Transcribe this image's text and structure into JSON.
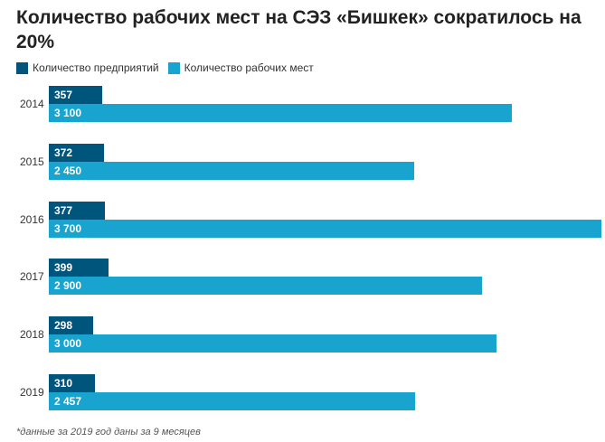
{
  "title": "Количество рабочих мест на СЭЗ «Бишкек» сократилось на 20%",
  "note": "*данные за 2019 год даны за 9 месяцев",
  "colors": {
    "enterprises": "#00557d",
    "jobs": "#19a3cf"
  },
  "chart_data": {
    "type": "bar",
    "orientation": "horizontal",
    "title": "Количество рабочих мест на СЭЗ «Бишкек» сократилось на 20%",
    "categories": [
      "2014",
      "2015",
      "2016",
      "2017",
      "2018",
      "2019"
    ],
    "series": [
      {
        "name": "Количество предприятий",
        "values": [
          357,
          372,
          377,
          399,
          298,
          310
        ],
        "labels": [
          "357",
          "372",
          "377",
          "399",
          "298",
          "310"
        ]
      },
      {
        "name": "Количество рабочих мест",
        "values": [
          3100,
          2450,
          3700,
          2900,
          3000,
          2457
        ],
        "labels": [
          "3 100",
          "2 450",
          "3 700",
          "2 900",
          "3 000",
          "2 457"
        ]
      }
    ],
    "legend": "top-left",
    "grid": false
  }
}
